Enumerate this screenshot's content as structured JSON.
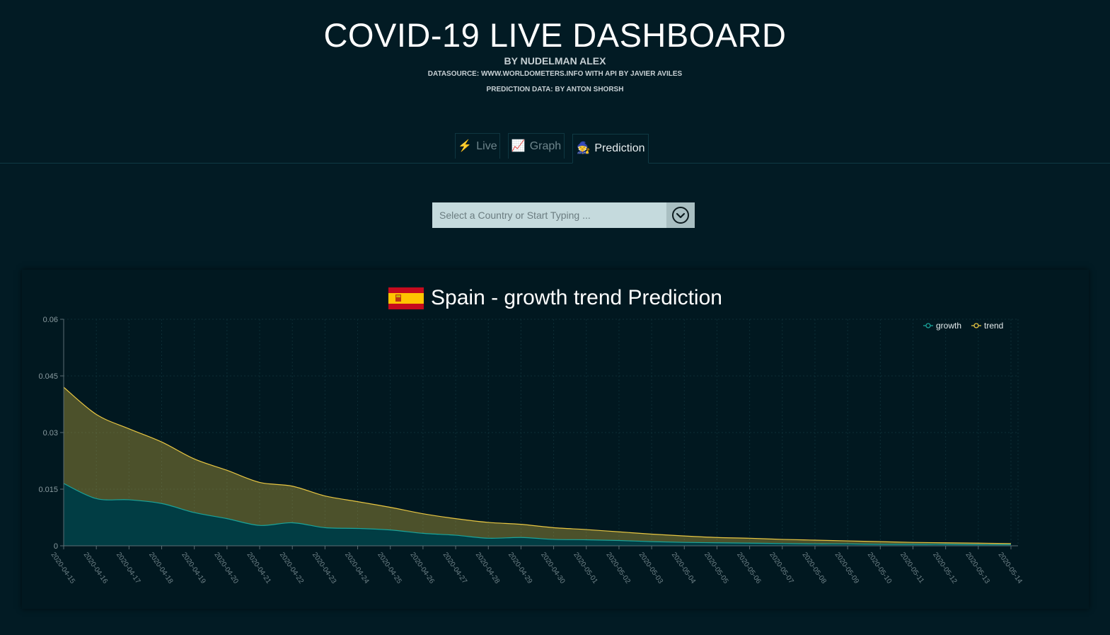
{
  "header": {
    "title": "COVID-19 LIVE DASHBOARD",
    "byline": "BY NUDELMAN ALEX",
    "datasource": "DATASOURCE: WWW.WORLDOMETERS.INFO WITH API BY JAVIER AVILES",
    "prediction_credit": "PREDICTION DATA: BY ANTON SHORSH"
  },
  "tabs": [
    {
      "label": "Live",
      "icon": "lightning-icon",
      "glyph": "⚡"
    },
    {
      "label": "Graph",
      "icon": "chart-up-icon",
      "glyph": "📈"
    },
    {
      "label": "Prediction",
      "icon": "fortune-teller-icon",
      "glyph": "🧙"
    }
  ],
  "country_select": {
    "placeholder": "Select a Country or Start Typing ...",
    "value": ""
  },
  "colors": {
    "background": "#021b24",
    "growth": "#1aa39a",
    "trend": "#e8c642"
  },
  "chart_data": {
    "type": "area",
    "title": "Spain - growth trend Prediction",
    "flag": "spain-flag-icon",
    "legend_position": "top-right",
    "grid": true,
    "ylim": [
      0,
      0.06
    ],
    "yticks": [
      "0",
      "0.015",
      "0.03",
      "0.045",
      "0.06"
    ],
    "yticks_values": [
      0,
      0.015,
      0.03,
      0.045,
      0.06
    ],
    "x": [
      "2020-04-15",
      "2020-04-16",
      "2020-04-17",
      "2020-04-18",
      "2020-04-19",
      "2020-04-20",
      "2020-04-21",
      "2020-04-22",
      "2020-04-23",
      "2020-04-24",
      "2020-04-25",
      "2020-04-26",
      "2020-04-27",
      "2020-04-28",
      "2020-04-29",
      "2020-04-30",
      "2020-05-01",
      "2020-05-02",
      "2020-05-03",
      "2020-05-04",
      "2020-05-05",
      "2020-05-06",
      "2020-05-07",
      "2020-05-08",
      "2020-05-09",
      "2020-05-10",
      "2020-05-11",
      "2020-05-12",
      "2020-05-13",
      "2020-05-14"
    ],
    "series": [
      {
        "name": "growth",
        "values": [
          0.0165,
          0.0125,
          0.0122,
          0.0112,
          0.0088,
          0.0072,
          0.0054,
          0.0061,
          0.0048,
          0.0046,
          0.0042,
          0.0033,
          0.0028,
          0.002,
          0.0022,
          0.0017,
          0.0016,
          0.0014,
          0.0011,
          0.0009,
          0.0008,
          0.0007,
          0.0006,
          0.0005,
          0.0005,
          0.0004,
          0.0004,
          0.0004,
          0.0003,
          0.0003
        ]
      },
      {
        "name": "trend",
        "values": [
          0.042,
          0.0348,
          0.031,
          0.0275,
          0.023,
          0.02,
          0.0168,
          0.0158,
          0.0132,
          0.0117,
          0.0102,
          0.0085,
          0.0072,
          0.0062,
          0.0057,
          0.0048,
          0.0043,
          0.0037,
          0.0031,
          0.0026,
          0.0022,
          0.002,
          0.0017,
          0.0015,
          0.0013,
          0.0011,
          0.0009,
          0.0008,
          0.0007,
          0.0006
        ]
      }
    ]
  }
}
